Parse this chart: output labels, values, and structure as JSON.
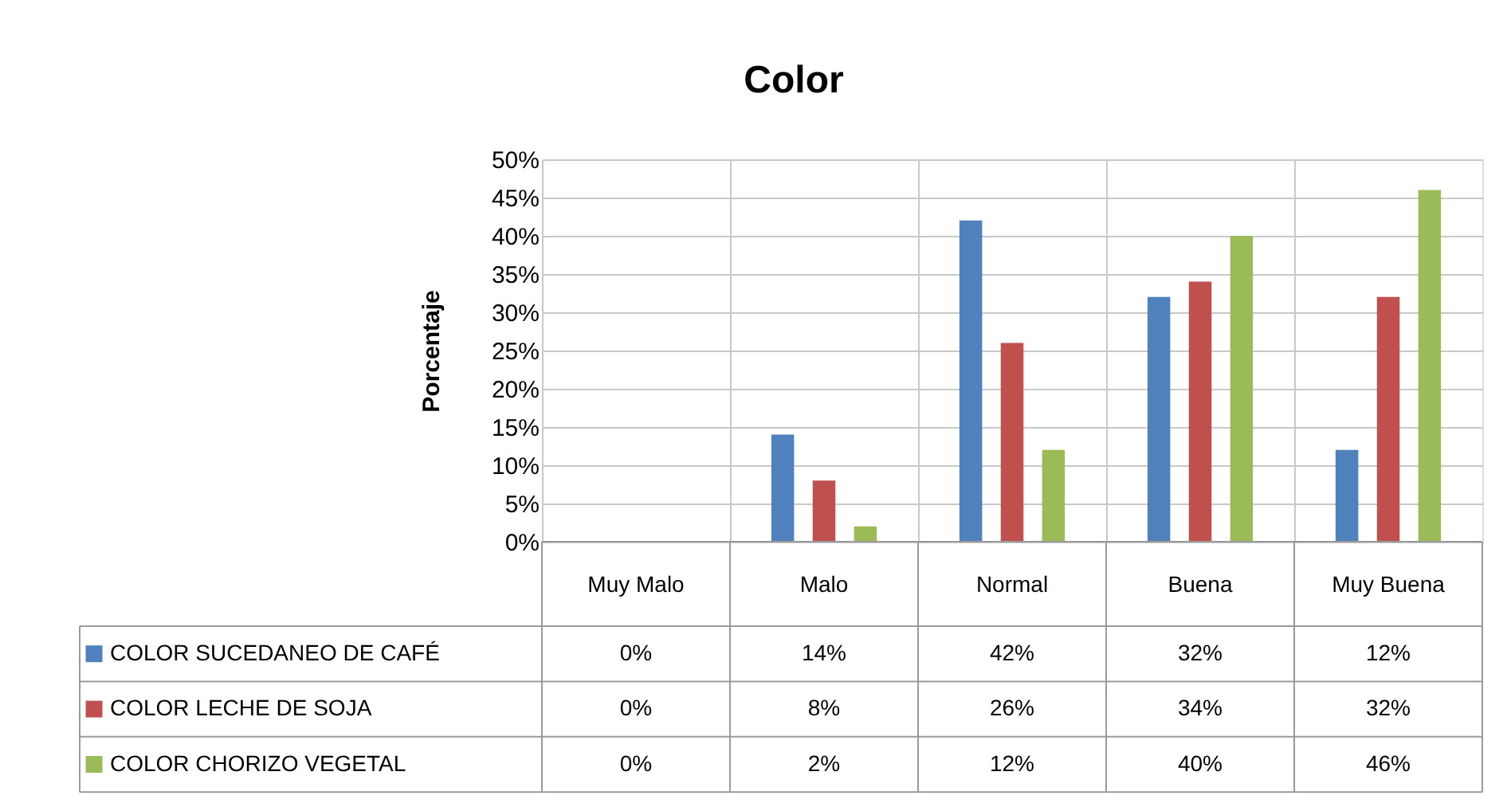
{
  "chart_data": {
    "type": "bar",
    "title": "Color",
    "ylabel": "Porcentaje",
    "categories": [
      "Muy Malo",
      "Malo",
      "Normal",
      "Buena",
      "Muy Buena"
    ],
    "series": [
      {
        "name": "COLOR  SUCEDANEO DE CAFÉ",
        "color": "#4f81bd",
        "values": [
          0,
          14,
          42,
          32,
          12
        ],
        "value_labels": [
          "0%",
          "14%",
          "42%",
          "32%",
          "12%"
        ]
      },
      {
        "name": "COLOR  LECHE DE SOJA",
        "color": "#c0504d",
        "values": [
          0,
          8,
          26,
          34,
          32
        ],
        "value_labels": [
          "0%",
          "8%",
          "26%",
          "34%",
          "32%"
        ]
      },
      {
        "name": "COLOR  CHORIZO VEGETAL",
        "color": "#9bbb59",
        "values": [
          0,
          2,
          12,
          40,
          46
        ],
        "value_labels": [
          "0%",
          "2%",
          "12%",
          "40%",
          "46%"
        ]
      }
    ],
    "ylim": [
      0,
      50
    ],
    "yticks": [
      {
        "value": 0,
        "label": "0%"
      },
      {
        "value": 5,
        "label": "5%"
      },
      {
        "value": 10,
        "label": "10%"
      },
      {
        "value": 15,
        "label": "15%"
      },
      {
        "value": 20,
        "label": "20%"
      },
      {
        "value": 25,
        "label": "25%"
      },
      {
        "value": 30,
        "label": "30%"
      },
      {
        "value": 35,
        "label": "35%"
      },
      {
        "value": 40,
        "label": "40%"
      },
      {
        "value": 45,
        "label": "45%"
      },
      {
        "value": 50,
        "label": "50%"
      }
    ],
    "grid": true,
    "legend": "bottom"
  }
}
